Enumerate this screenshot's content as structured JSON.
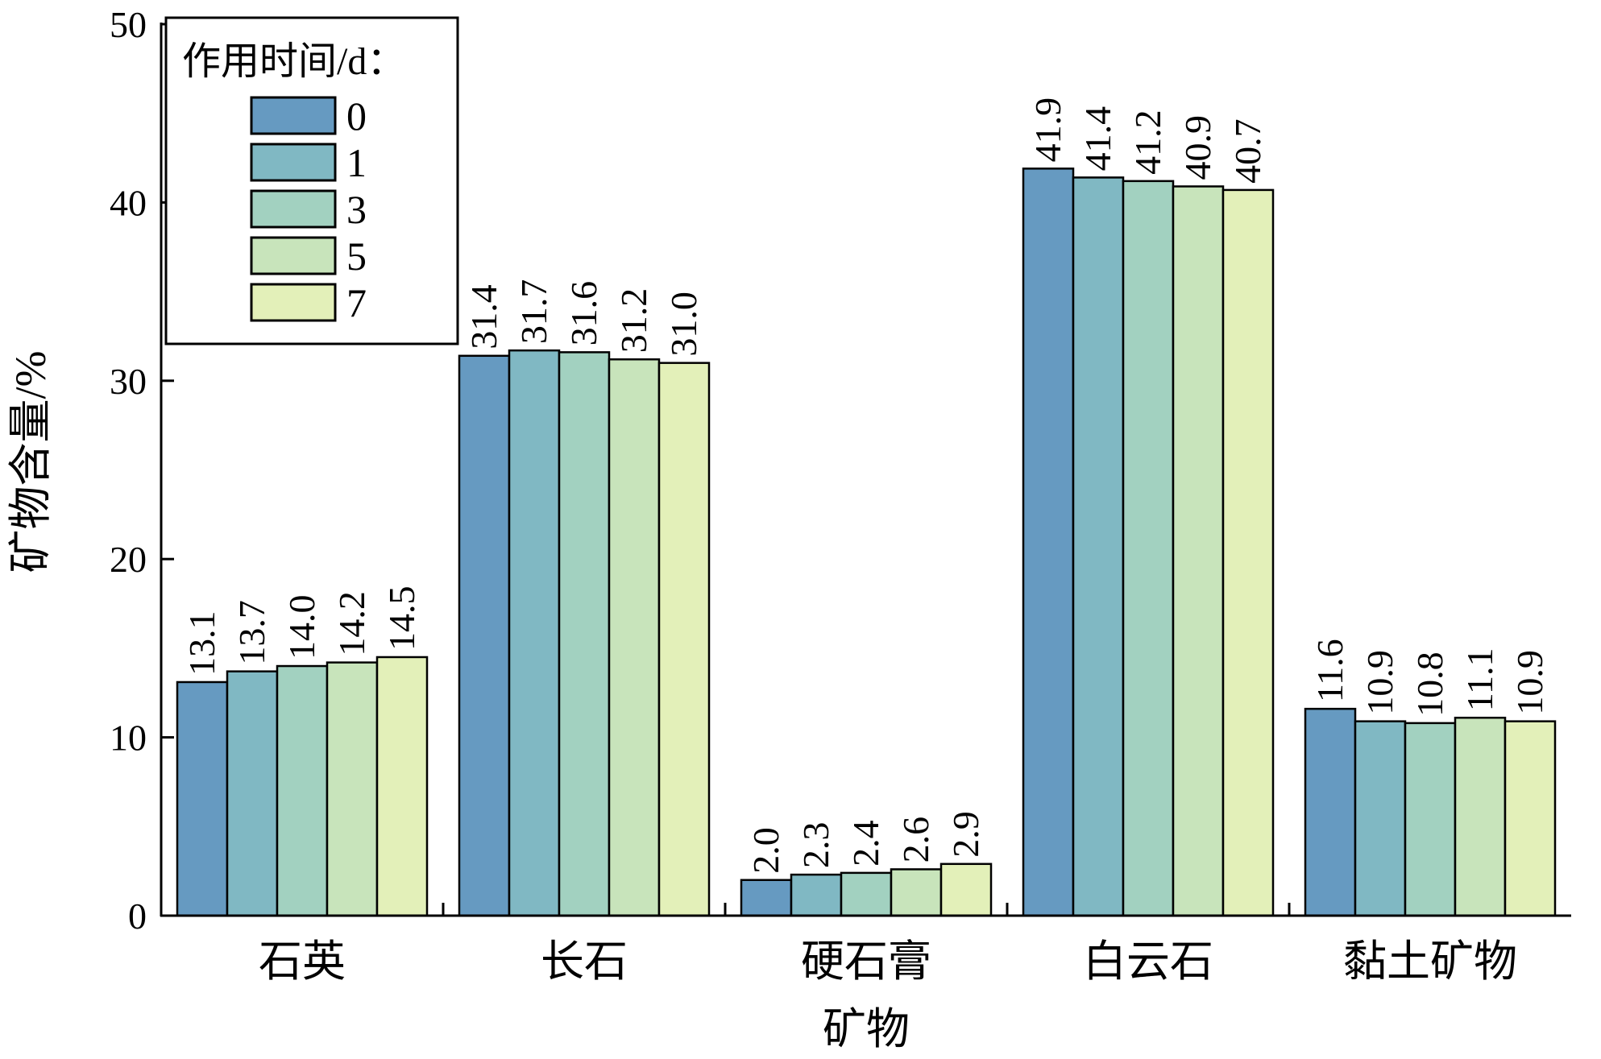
{
  "chart_data": {
    "type": "bar",
    "xlabel": "矿物",
    "ylabel": "矿物含量/%",
    "ylim": [
      0,
      50
    ],
    "yticks": [
      "0",
      "10",
      "20",
      "30",
      "40",
      "50"
    ],
    "categories": [
      "石英",
      "长石",
      "硬石膏",
      "白云石",
      "黏土矿物"
    ],
    "legend_title": "作用时间/d：",
    "legend_position": "top-left",
    "grid": false,
    "series": [
      {
        "name": "0",
        "color": "#669ac1",
        "values": [
          13.1,
          31.4,
          2.0,
          41.9,
          11.6
        ],
        "labels": [
          "13.1",
          "31.4",
          "2.0",
          "41.9",
          "11.6"
        ]
      },
      {
        "name": "1",
        "color": "#80b8c3",
        "values": [
          13.7,
          31.7,
          2.3,
          41.4,
          10.9
        ],
        "labels": [
          "13.7",
          "31.7",
          "2.3",
          "41.4",
          "10.9"
        ]
      },
      {
        "name": "3",
        "color": "#a2d1c0",
        "values": [
          14.0,
          31.6,
          2.4,
          41.2,
          10.8
        ],
        "labels": [
          "14.0",
          "31.6",
          "2.4",
          "41.2",
          "10.8"
        ]
      },
      {
        "name": "5",
        "color": "#c8e4bb",
        "values": [
          14.2,
          31.2,
          2.6,
          40.9,
          11.1
        ],
        "labels": [
          "14.2",
          "31.2",
          "2.6",
          "40.9",
          "11.1"
        ]
      },
      {
        "name": "7",
        "color": "#e3f0b9",
        "values": [
          14.5,
          31.0,
          2.9,
          40.7,
          10.9
        ],
        "labels": [
          "14.5",
          "31.0",
          "2.9",
          "40.7",
          "10.9"
        ]
      }
    ]
  }
}
